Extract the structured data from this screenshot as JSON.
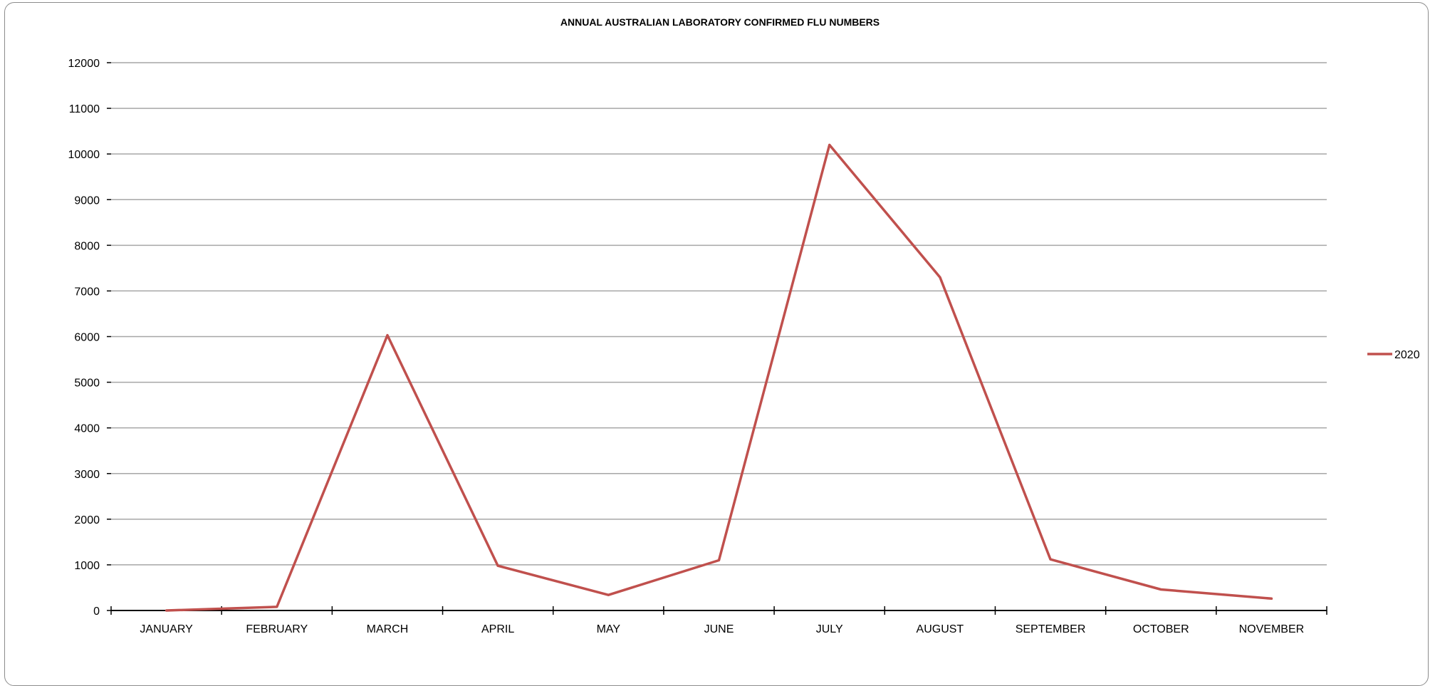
{
  "chart_data": {
    "type": "line",
    "title": "ANNUAL AUSTRALIAN LABORATORY CONFIRMED FLU NUMBERS",
    "xlabel": "",
    "ylabel": "",
    "categories": [
      "JANUARY",
      "FEBRUARY",
      "MARCH",
      "APRIL",
      "MAY",
      "JUNE",
      "JULY",
      "AUGUST",
      "SEPTEMBER",
      "OCTOBER",
      "NOVEMBER"
    ],
    "series": [
      {
        "name": "2020",
        "color": "#c0504d",
        "values": [
          0,
          80,
          6030,
          980,
          340,
          1100,
          10200,
          7300,
          1120,
          460,
          260
        ]
      }
    ],
    "ylim": [
      0,
      12000
    ],
    "yticks": [
      "0",
      "1000",
      "2000",
      "3000",
      "4000",
      "5000",
      "6000",
      "7000",
      "8000",
      "9000",
      "10000",
      "11000",
      "12000"
    ],
    "grid": "horizontal",
    "legend_position": "right",
    "gridline_color": "#a6a6a6",
    "axis_color": "#000000"
  }
}
